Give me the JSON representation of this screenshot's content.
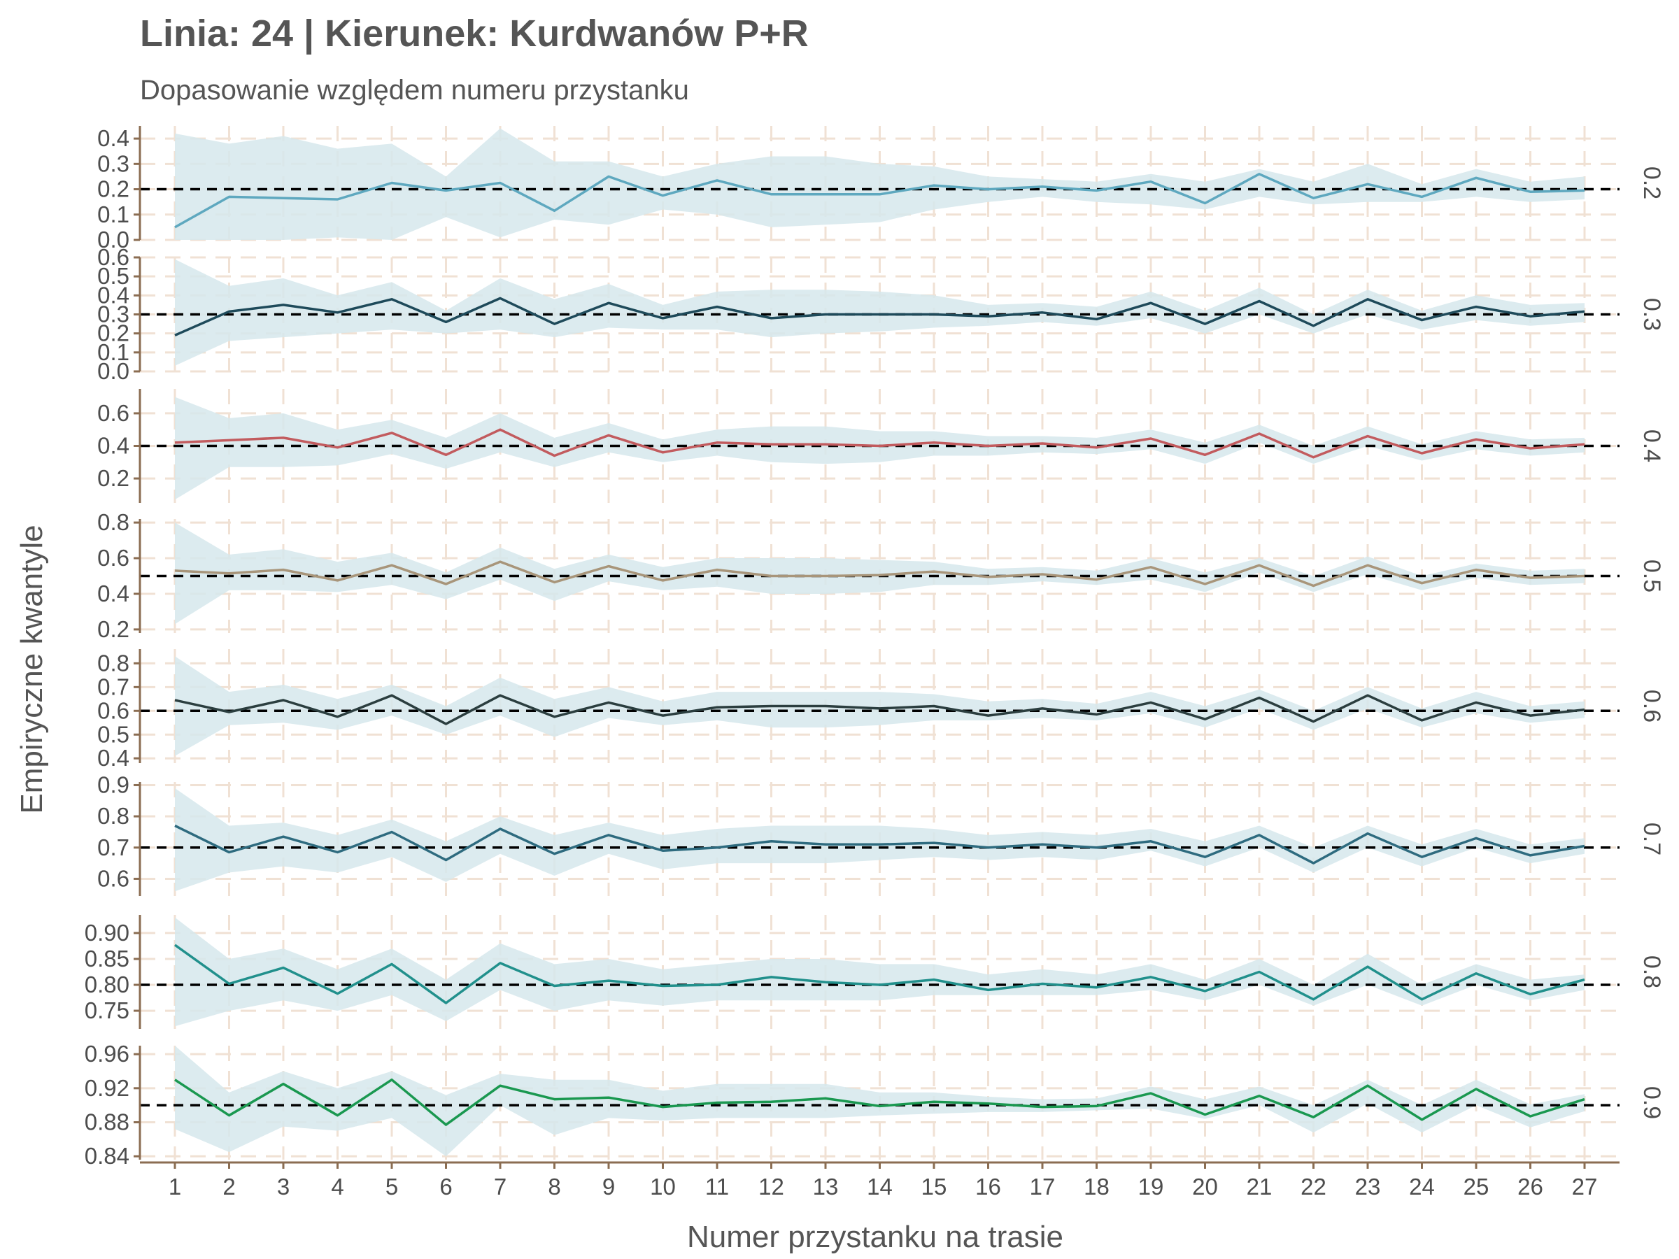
{
  "chart_data": {
    "type": "line",
    "title": "Linia: 24 | Kierunek: Kurdwanów P+R",
    "subtitle": "Dopasowanie względem numeru przystanku",
    "xlabel": "Numer przystanku na trasie",
    "ylabel": "Empiryczne kwantyle",
    "x": [
      1,
      2,
      3,
      4,
      5,
      6,
      7,
      8,
      9,
      10,
      11,
      12,
      13,
      14,
      15,
      16,
      17,
      18,
      19,
      20,
      21,
      22,
      23,
      24,
      25,
      26,
      27
    ],
    "grid": true,
    "colors": {
      "band": "#d6e7ec",
      "grid": "#f0e1d4",
      "axis": "#8b6d52",
      "reference_line": "#000000"
    },
    "panels": [
      {
        "strip_label": "0.2",
        "reference": 0.2,
        "color": "#5ea8bf",
        "ylim": [
          0,
          0.45
        ],
        "ticks": [
          0.0,
          0.1,
          0.2,
          0.3,
          0.4
        ],
        "tick_labels": [
          "0.0",
          "0.1",
          "0.2",
          "0.3",
          "0.4"
        ],
        "values": [
          0.05,
          0.17,
          0.165,
          0.16,
          0.225,
          0.195,
          0.225,
          0.115,
          0.25,
          0.175,
          0.235,
          0.18,
          0.18,
          0.18,
          0.215,
          0.2,
          0.21,
          0.195,
          0.23,
          0.145,
          0.26,
          0.165,
          0.22,
          0.17,
          0.245,
          0.19,
          0.195
        ],
        "band_lower": [
          0.0,
          0.0,
          0.0,
          0.01,
          0.0,
          0.09,
          0.01,
          0.08,
          0.06,
          0.12,
          0.1,
          0.05,
          0.06,
          0.07,
          0.12,
          0.15,
          0.17,
          0.15,
          0.14,
          0.12,
          0.17,
          0.14,
          0.15,
          0.15,
          0.17,
          0.15,
          0.16
        ],
        "band_upper": [
          0.42,
          0.38,
          0.41,
          0.36,
          0.38,
          0.25,
          0.44,
          0.31,
          0.31,
          0.25,
          0.3,
          0.33,
          0.33,
          0.3,
          0.29,
          0.25,
          0.24,
          0.23,
          0.26,
          0.23,
          0.28,
          0.23,
          0.3,
          0.22,
          0.28,
          0.23,
          0.25
        ]
      },
      {
        "strip_label": "0.3",
        "reference": 0.3,
        "color": "#1e4a5a",
        "ylim": [
          0,
          0.6
        ],
        "ticks": [
          0.0,
          0.1,
          0.2,
          0.3,
          0.4,
          0.5,
          0.6
        ],
        "tick_labels": [
          "0.0",
          "0.1",
          "0.2",
          "0.3",
          "0.4",
          "0.5",
          "0.6"
        ],
        "values": [
          0.19,
          0.315,
          0.35,
          0.31,
          0.38,
          0.26,
          0.385,
          0.25,
          0.36,
          0.28,
          0.34,
          0.28,
          0.3,
          0.3,
          0.3,
          0.29,
          0.31,
          0.275,
          0.36,
          0.25,
          0.37,
          0.24,
          0.38,
          0.27,
          0.34,
          0.29,
          0.315
        ],
        "band_lower": [
          0.03,
          0.16,
          0.18,
          0.2,
          0.22,
          0.2,
          0.22,
          0.18,
          0.23,
          0.22,
          0.22,
          0.18,
          0.2,
          0.21,
          0.23,
          0.24,
          0.26,
          0.24,
          0.28,
          0.2,
          0.3,
          0.2,
          0.3,
          0.22,
          0.27,
          0.24,
          0.26
        ],
        "band_upper": [
          0.59,
          0.45,
          0.49,
          0.4,
          0.47,
          0.32,
          0.49,
          0.38,
          0.46,
          0.35,
          0.42,
          0.43,
          0.43,
          0.42,
          0.4,
          0.35,
          0.36,
          0.34,
          0.42,
          0.32,
          0.44,
          0.3,
          0.43,
          0.32,
          0.4,
          0.35,
          0.36
        ]
      },
      {
        "strip_label": "0.4",
        "reference": 0.4,
        "color": "#c25b5e",
        "ylim": [
          0.05,
          0.75
        ],
        "ticks": [
          0.2,
          0.4,
          0.6
        ],
        "tick_labels": [
          "0.2",
          "0.4",
          "0.6"
        ],
        "values": [
          0.42,
          0.435,
          0.45,
          0.39,
          0.48,
          0.345,
          0.5,
          0.34,
          0.465,
          0.36,
          0.42,
          0.41,
          0.41,
          0.4,
          0.42,
          0.4,
          0.415,
          0.39,
          0.445,
          0.345,
          0.475,
          0.33,
          0.46,
          0.355,
          0.44,
          0.385,
          0.41
        ],
        "band_lower": [
          0.07,
          0.27,
          0.27,
          0.28,
          0.35,
          0.26,
          0.36,
          0.27,
          0.36,
          0.3,
          0.34,
          0.3,
          0.29,
          0.3,
          0.34,
          0.34,
          0.36,
          0.35,
          0.38,
          0.29,
          0.42,
          0.29,
          0.4,
          0.31,
          0.38,
          0.34,
          0.36
        ],
        "band_upper": [
          0.7,
          0.57,
          0.6,
          0.5,
          0.56,
          0.45,
          0.6,
          0.45,
          0.54,
          0.44,
          0.5,
          0.52,
          0.52,
          0.49,
          0.49,
          0.46,
          0.46,
          0.45,
          0.5,
          0.42,
          0.53,
          0.4,
          0.52,
          0.41,
          0.49,
          0.44,
          0.45
        ]
      },
      {
        "strip_label": "0.5",
        "reference": 0.5,
        "color": "#a8957a",
        "ylim": [
          0.18,
          0.82
        ],
        "ticks": [
          0.2,
          0.4,
          0.6,
          0.8
        ],
        "tick_labels": [
          "0.2",
          "0.4",
          "0.6",
          "0.8"
        ],
        "values": [
          0.53,
          0.515,
          0.535,
          0.475,
          0.56,
          0.455,
          0.58,
          0.465,
          0.555,
          0.475,
          0.535,
          0.5,
          0.5,
          0.505,
          0.525,
          0.495,
          0.51,
          0.48,
          0.55,
          0.455,
          0.56,
          0.445,
          0.56,
          0.46,
          0.535,
          0.49,
          0.5
        ],
        "band_lower": [
          0.23,
          0.42,
          0.42,
          0.41,
          0.45,
          0.37,
          0.48,
          0.36,
          0.47,
          0.42,
          0.44,
          0.4,
          0.4,
          0.41,
          0.45,
          0.45,
          0.47,
          0.45,
          0.48,
          0.41,
          0.52,
          0.41,
          0.51,
          0.42,
          0.49,
          0.45,
          0.46
        ],
        "band_upper": [
          0.8,
          0.62,
          0.65,
          0.58,
          0.63,
          0.52,
          0.66,
          0.54,
          0.62,
          0.55,
          0.6,
          0.6,
          0.6,
          0.59,
          0.58,
          0.54,
          0.55,
          0.53,
          0.6,
          0.52,
          0.6,
          0.5,
          0.61,
          0.5,
          0.57,
          0.53,
          0.54
        ]
      },
      {
        "strip_label": "0.6",
        "reference": 0.6,
        "color": "#2b3e3f",
        "ylim": [
          0.38,
          0.86
        ],
        "ticks": [
          0.4,
          0.5,
          0.6,
          0.7,
          0.8
        ],
        "tick_labels": [
          "0.4",
          "0.5",
          "0.6",
          "0.7",
          "0.8"
        ],
        "values": [
          0.645,
          0.595,
          0.645,
          0.575,
          0.665,
          0.545,
          0.665,
          0.575,
          0.635,
          0.58,
          0.615,
          0.62,
          0.62,
          0.61,
          0.62,
          0.58,
          0.61,
          0.585,
          0.635,
          0.565,
          0.655,
          0.555,
          0.665,
          0.56,
          0.635,
          0.58,
          0.605
        ],
        "band_lower": [
          0.41,
          0.54,
          0.55,
          0.52,
          0.58,
          0.5,
          0.58,
          0.49,
          0.57,
          0.54,
          0.56,
          0.53,
          0.53,
          0.54,
          0.56,
          0.56,
          0.57,
          0.56,
          0.59,
          0.53,
          0.61,
          0.52,
          0.61,
          0.53,
          0.59,
          0.55,
          0.57
        ],
        "band_upper": [
          0.83,
          0.68,
          0.71,
          0.65,
          0.71,
          0.62,
          0.74,
          0.65,
          0.7,
          0.64,
          0.68,
          0.68,
          0.68,
          0.68,
          0.67,
          0.64,
          0.65,
          0.63,
          0.68,
          0.62,
          0.69,
          0.6,
          0.7,
          0.61,
          0.68,
          0.62,
          0.64
        ]
      },
      {
        "strip_label": "0.7",
        "reference": 0.7,
        "color": "#2e6b7f",
        "ylim": [
          0.545,
          0.91
        ],
        "ticks": [
          0.6,
          0.7,
          0.8,
          0.9
        ],
        "tick_labels": [
          "0.6",
          "0.7",
          "0.8",
          "0.9"
        ],
        "values": [
          0.77,
          0.685,
          0.735,
          0.685,
          0.75,
          0.66,
          0.76,
          0.68,
          0.74,
          0.69,
          0.7,
          0.72,
          0.71,
          0.71,
          0.715,
          0.7,
          0.71,
          0.7,
          0.72,
          0.67,
          0.74,
          0.65,
          0.745,
          0.67,
          0.73,
          0.675,
          0.705
        ],
        "band_lower": [
          0.56,
          0.62,
          0.64,
          0.62,
          0.67,
          0.59,
          0.68,
          0.61,
          0.68,
          0.63,
          0.65,
          0.65,
          0.65,
          0.66,
          0.67,
          0.66,
          0.67,
          0.66,
          0.69,
          0.64,
          0.7,
          0.62,
          0.7,
          0.64,
          0.7,
          0.65,
          0.68
        ],
        "band_upper": [
          0.89,
          0.77,
          0.78,
          0.74,
          0.79,
          0.72,
          0.8,
          0.74,
          0.78,
          0.74,
          0.76,
          0.77,
          0.77,
          0.77,
          0.76,
          0.74,
          0.75,
          0.74,
          0.76,
          0.72,
          0.77,
          0.7,
          0.77,
          0.71,
          0.76,
          0.71,
          0.73
        ]
      },
      {
        "strip_label": "0.8",
        "reference": 0.8,
        "color": "#21908c",
        "ylim": [
          0.715,
          0.935
        ],
        "ticks": [
          0.75,
          0.8,
          0.85,
          0.9
        ],
        "tick_labels": [
          "0.75",
          "0.80",
          "0.85",
          "0.90"
        ],
        "values": [
          0.877,
          0.802,
          0.833,
          0.783,
          0.84,
          0.765,
          0.842,
          0.798,
          0.808,
          0.798,
          0.8,
          0.815,
          0.805,
          0.8,
          0.81,
          0.79,
          0.802,
          0.795,
          0.815,
          0.788,
          0.825,
          0.772,
          0.835,
          0.772,
          0.822,
          0.782,
          0.81
        ],
        "band_lower": [
          0.72,
          0.75,
          0.77,
          0.75,
          0.78,
          0.73,
          0.79,
          0.75,
          0.77,
          0.76,
          0.77,
          0.77,
          0.77,
          0.77,
          0.78,
          0.78,
          0.78,
          0.78,
          0.79,
          0.77,
          0.8,
          0.76,
          0.8,
          0.76,
          0.8,
          0.77,
          0.79
        ],
        "band_upper": [
          0.93,
          0.85,
          0.87,
          0.83,
          0.87,
          0.81,
          0.88,
          0.84,
          0.85,
          0.83,
          0.84,
          0.85,
          0.85,
          0.84,
          0.84,
          0.82,
          0.83,
          0.82,
          0.84,
          0.81,
          0.85,
          0.8,
          0.86,
          0.8,
          0.84,
          0.81,
          0.82
        ]
      },
      {
        "strip_label": "0.9",
        "reference": 0.9,
        "color": "#1a9850",
        "ylim": [
          0.836,
          0.97
        ],
        "ticks": [
          0.84,
          0.88,
          0.92,
          0.96
        ],
        "tick_labels": [
          "0.84",
          "0.88",
          "0.92",
          "0.96"
        ],
        "values": [
          0.93,
          0.888,
          0.925,
          0.888,
          0.93,
          0.877,
          0.923,
          0.907,
          0.909,
          0.898,
          0.903,
          0.904,
          0.908,
          0.899,
          0.904,
          0.902,
          0.898,
          0.899,
          0.914,
          0.889,
          0.911,
          0.886,
          0.923,
          0.883,
          0.919,
          0.887,
          0.907
        ],
        "band_lower": [
          0.872,
          0.845,
          0.875,
          0.87,
          0.885,
          0.84,
          0.9,
          0.865,
          0.885,
          0.882,
          0.885,
          0.885,
          0.885,
          0.888,
          0.89,
          0.892,
          0.892,
          0.894,
          0.896,
          0.884,
          0.9,
          0.868,
          0.902,
          0.868,
          0.9,
          0.874,
          0.893
        ],
        "band_upper": [
          0.97,
          0.915,
          0.94,
          0.92,
          0.94,
          0.912,
          0.937,
          0.93,
          0.93,
          0.917,
          0.925,
          0.925,
          0.925,
          0.915,
          0.915,
          0.91,
          0.907,
          0.908,
          0.922,
          0.907,
          0.922,
          0.9,
          0.93,
          0.9,
          0.93,
          0.901,
          0.913
        ]
      }
    ]
  }
}
